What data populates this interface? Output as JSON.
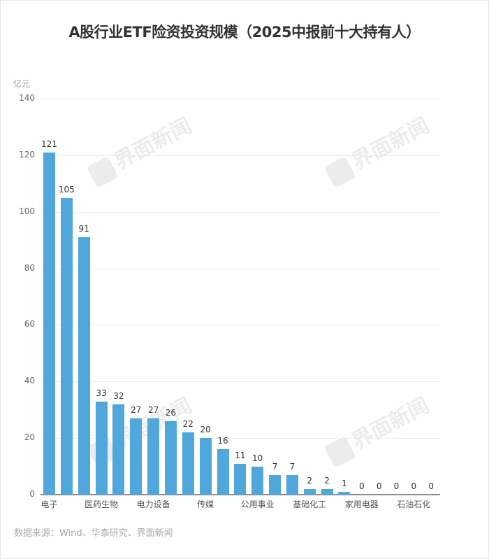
{
  "title": "A股行业ETF险资投资规模（2025中报前十大持有人）",
  "unit": "亿元",
  "source": "数据来源：Wind、华泰研究、界面新闻",
  "watermark": "界面新闻",
  "colors": {
    "bar": "#4fa7dc",
    "grid": "#e8edf5",
    "axis": "#8c8c8c"
  },
  "chart_data": {
    "type": "bar",
    "title": "A股行业ETF险资投资规模（2025中报前十大持有人）",
    "ylabel": "亿元",
    "xlabel": "",
    "ylim": [
      0,
      140
    ],
    "yticks": [
      0,
      20,
      40,
      60,
      80,
      100,
      120,
      140
    ],
    "grid": true,
    "legend": null,
    "categories": [
      "电子",
      "",
      "",
      "医药生物",
      "",
      "",
      "电力设备",
      "",
      "",
      "传媒",
      "",
      "",
      "公用事业",
      "",
      "",
      "基础化工",
      "",
      "",
      "家用电器",
      "",
      "",
      "石油石化",
      ""
    ],
    "visible_tick_labels": [
      "电子",
      "医药生物",
      "电力设备",
      "传媒",
      "公用事业",
      "基础化工",
      "家用电器",
      "石油石化"
    ],
    "values": [
      121,
      105,
      91,
      33,
      32,
      27,
      27,
      26,
      22,
      20,
      16,
      11,
      10,
      7,
      7,
      2,
      2,
      1,
      0,
      0,
      0,
      0,
      0
    ]
  }
}
